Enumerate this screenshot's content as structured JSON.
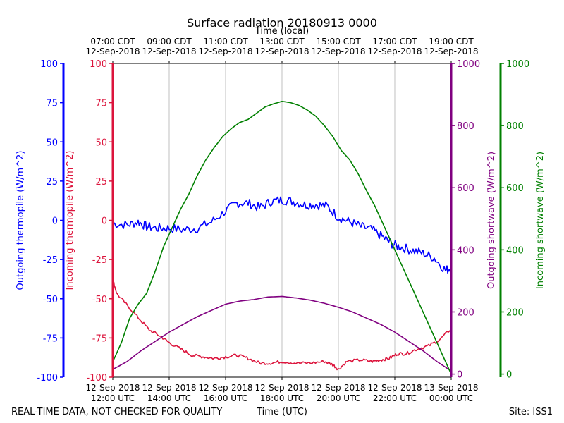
{
  "chart_data": {
    "type": "line",
    "title": "Surface radiation 20180913 0000",
    "top_xlabel": "Time (local)",
    "xlabel": "Time (UTC)",
    "footer_left": "REAL-TIME DATA, NOT CHECKED FOR QUALITY",
    "footer_right": "Site: ISS1",
    "x_utc_hours_range": [
      12,
      24
    ],
    "utc_ticks": [
      {
        "h": 12,
        "date": "12-Sep-2018",
        "time": "12:00 UTC"
      },
      {
        "h": 14,
        "date": "12-Sep-2018",
        "time": "14:00 UTC"
      },
      {
        "h": 16,
        "date": "12-Sep-2018",
        "time": "16:00 UTC"
      },
      {
        "h": 18,
        "date": "12-Sep-2018",
        "time": "18:00 UTC"
      },
      {
        "h": 20,
        "date": "12-Sep-2018",
        "time": "20:00 UTC"
      },
      {
        "h": 22,
        "date": "12-Sep-2018",
        "time": "22:00 UTC"
      },
      {
        "h": 24,
        "date": "13-Sep-2018",
        "time": "00:00 UTC"
      }
    ],
    "local_ticks": [
      {
        "h": 12,
        "time": "07:00 CDT",
        "date": "12-Sep-2018"
      },
      {
        "h": 14,
        "time": "09:00 CDT",
        "date": "12-Sep-2018"
      },
      {
        "h": 16,
        "time": "11:00 CDT",
        "date": "12-Sep-2018"
      },
      {
        "h": 18,
        "time": "13:00 CDT",
        "date": "12-Sep-2018"
      },
      {
        "h": 20,
        "time": "15:00 CDT",
        "date": "12-Sep-2018"
      },
      {
        "h": 22,
        "time": "17:00 CDT",
        "date": "12-Sep-2018"
      },
      {
        "h": 24,
        "time": "19:00 CDT",
        "date": "12-Sep-2018"
      }
    ],
    "axes": {
      "outgoing_thermopile": {
        "label": "Outgoing thermopile (W/m^2)",
        "color": "#0000ff",
        "ylim": [
          -100,
          100
        ],
        "ticks": [
          "-100",
          "-75",
          "-50",
          "-25",
          "0",
          "25",
          "50",
          "75",
          "100"
        ]
      },
      "incoming_thermopile": {
        "label": "Incoming thermopile (W/m^2)",
        "color": "#dc143c",
        "ylim": [
          -100,
          100
        ],
        "ticks": [
          "-100",
          "-75",
          "-50",
          "-25",
          "0",
          "25",
          "50",
          "75",
          "100"
        ]
      },
      "outgoing_shortwave": {
        "label": "Outgoing shortwave (W/m^2)",
        "color": "#800080",
        "ylim": [
          -10,
          1000
        ],
        "ticks": [
          "0",
          "200",
          "400",
          "600",
          "800",
          "1000"
        ]
      },
      "incoming_shortwave": {
        "label": "Incoming shortwave (W/m^2)",
        "color": "#008000",
        "ylim": [
          -10,
          1000
        ],
        "ticks": [
          "0",
          "200",
          "400",
          "600",
          "800",
          "1000"
        ]
      }
    },
    "series": [
      {
        "name": "Outgoing thermopile",
        "axis": "outgoing_thermopile",
        "color": "#0000ff",
        "noise": 3,
        "x": [
          12.0,
          12.5,
          12.9,
          13.2,
          13.6,
          14.0,
          14.5,
          15.0,
          15.5,
          16.0,
          16.4,
          16.8,
          17.2,
          17.6,
          18.0,
          18.4,
          18.8,
          19.2,
          19.6,
          20.0,
          20.4,
          20.8,
          21.2,
          21.6,
          21.9,
          22.2,
          22.6,
          23.0,
          23.4,
          23.8,
          24.0
        ],
        "y": [
          -2,
          -3,
          -1,
          -4,
          -5,
          -5,
          -6,
          -5,
          -1,
          6,
          11,
          11,
          8,
          12,
          13,
          12,
          10,
          10,
          9,
          2,
          -1,
          -4,
          -6,
          -11,
          -15,
          -17,
          -19,
          -21,
          -24,
          -32,
          -30
        ]
      },
      {
        "name": "Incoming thermopile",
        "axis": "incoming_thermopile",
        "color": "#dc143c",
        "noise": 1,
        "x": [
          12.0,
          12.15,
          12.5,
          12.9,
          13.3,
          13.7,
          14.0,
          14.4,
          14.8,
          15.2,
          15.6,
          16.0,
          16.4,
          16.8,
          17.2,
          17.6,
          18.0,
          18.5,
          19.0,
          19.5,
          19.8,
          20.0,
          20.3,
          20.8,
          21.2,
          21.5,
          21.8,
          22.1,
          22.4,
          22.8,
          23.2,
          23.6,
          24.0
        ],
        "y": [
          -38,
          -47,
          -54,
          -62,
          -70,
          -74,
          -78,
          -82,
          -86,
          -87,
          -88,
          -87,
          -86,
          -88,
          -91,
          -91,
          -90,
          -91,
          -91,
          -90,
          -92,
          -95,
          -90,
          -89,
          -90,
          -89,
          -88,
          -85,
          -85,
          -82,
          -80,
          -76,
          -69
        ]
      },
      {
        "name": "Outgoing shortwave",
        "axis": "outgoing_shortwave",
        "color": "#800080",
        "noise": 0,
        "x": [
          12.0,
          12.5,
          13.0,
          13.5,
          14.0,
          14.5,
          15.0,
          15.5,
          16.0,
          16.5,
          17.0,
          17.5,
          18.0,
          18.5,
          19.0,
          19.5,
          20.0,
          20.5,
          21.0,
          21.5,
          22.0,
          22.5,
          23.0,
          23.5,
          24.0
        ],
        "y": [
          15,
          40,
          75,
          105,
          135,
          160,
          185,
          205,
          225,
          235,
          240,
          248,
          250,
          245,
          238,
          228,
          215,
          200,
          180,
          160,
          135,
          105,
          75,
          40,
          10
        ]
      },
      {
        "name": "Incoming shortwave",
        "axis": "incoming_shortwave",
        "color": "#008000",
        "noise": 0,
        "x": [
          12.0,
          12.3,
          12.6,
          12.9,
          13.2,
          13.5,
          13.8,
          14.1,
          14.4,
          14.7,
          15.0,
          15.3,
          15.6,
          15.9,
          16.2,
          16.5,
          16.8,
          17.1,
          17.4,
          17.7,
          18.0,
          18.3,
          18.6,
          18.9,
          19.2,
          19.5,
          19.8,
          20.1,
          20.4,
          20.7,
          21.0,
          21.3,
          21.6,
          21.9,
          22.2,
          22.5,
          22.8,
          23.1,
          23.4,
          23.7,
          24.0
        ],
        "y": [
          40,
          100,
          180,
          225,
          260,
          330,
          410,
          470,
          530,
          580,
          640,
          690,
          730,
          765,
          790,
          810,
          820,
          840,
          860,
          870,
          878,
          874,
          865,
          850,
          830,
          800,
          765,
          720,
          690,
          645,
          590,
          540,
          480,
          420,
          360,
          300,
          240,
          180,
          120,
          60,
          0
        ]
      }
    ]
  }
}
